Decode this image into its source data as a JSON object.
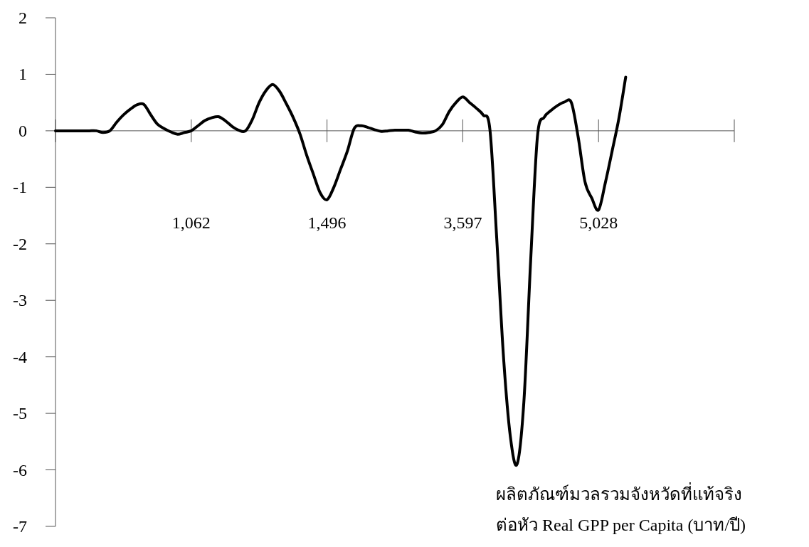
{
  "chart_data": {
    "type": "line",
    "xlabel": "ผลิตภัณฑ์มวลรวมจังหวัดที่แท้จริง ต่อหัว  Real GPP per Capita (บาท/ปี)",
    "categories": [
      null,
      null,
      null,
      null,
      null,
      null,
      null,
      null,
      null,
      null,
      null,
      null,
      null,
      null,
      null,
      null,
      null,
      null,
      null,
      null,
      "1,062",
      null,
      null,
      null,
      null,
      null,
      null,
      null,
      null,
      null,
      null,
      null,
      null,
      null,
      null,
      null,
      null,
      null,
      null,
      null,
      "1,496",
      null,
      null,
      null,
      null,
      null,
      null,
      null,
      null,
      null,
      null,
      null,
      null,
      null,
      null,
      null,
      null,
      null,
      null,
      null,
      "3,597",
      null,
      null,
      null,
      null,
      null,
      null,
      null,
      null,
      null,
      null,
      null,
      null,
      null,
      null,
      null,
      null,
      null,
      null,
      null,
      "5,028",
      null,
      null,
      null,
      null,
      null,
      null,
      null,
      null,
      null,
      null,
      null,
      null,
      null,
      null,
      null,
      null,
      null,
      null,
      null,
      null
    ],
    "ylim": [
      -7,
      2
    ],
    "yticks": [
      2,
      1,
      0,
      -1,
      -2,
      -3,
      -4,
      -5,
      -6,
      -7
    ],
    "marker": "none",
    "line_style": "solid",
    "series": [
      {
        "color": "#000000",
        "values": [
          0,
          0,
          0,
          0,
          0,
          0,
          0,
          -0.03,
          0,
          0.15,
          0.28,
          0.38,
          0.46,
          0.47,
          0.29,
          0.12,
          0.04,
          -0.02,
          -0.06,
          -0.03,
          0,
          0.09,
          0.18,
          0.23,
          0.25,
          0.18,
          0.08,
          0.01,
          0,
          0.2,
          0.5,
          0.71,
          0.82,
          0.7,
          0.48,
          0.24,
          -0.05,
          -0.43,
          -0.77,
          -1.1,
          -1.22,
          -1.0,
          -0.68,
          -0.36,
          0.04,
          0.09,
          0.06,
          0.02,
          -0.01,
          0,
          0.01,
          0.01,
          0.01,
          -0.02,
          -0.04,
          -0.03,
          0,
          0.11,
          0.34,
          0.5,
          0.6,
          0.5,
          0.4,
          0.28,
          0.02,
          -1.9,
          -4.0,
          -5.4,
          -5.9,
          -4.8,
          -2.3,
          -0.1,
          0.24,
          0.36,
          0.45,
          0.51,
          0.5,
          -0.11,
          -0.9,
          -1.19,
          -1.4,
          -0.92,
          -0.36,
          0.22,
          0.95,
          null,
          null,
          null,
          null,
          null,
          null,
          null,
          null,
          null,
          null,
          null,
          null,
          null,
          null,
          null,
          null
        ]
      }
    ]
  }
}
